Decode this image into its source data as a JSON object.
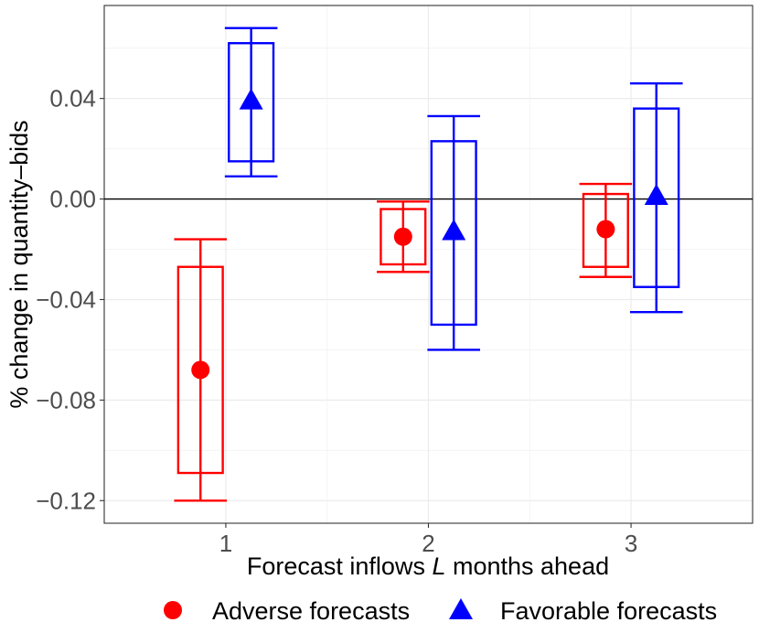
{
  "chart_data": {
    "type": "boxplot",
    "title": "",
    "xlabel_prefix": "Forecast inflows ",
    "xlabel_var": "L",
    "xlabel_suffix": " months ahead",
    "ylabel": "% change in quantity–bids",
    "categories": [
      "1",
      "2",
      "3"
    ],
    "yticks": [
      0.04,
      0.0,
      -0.04,
      -0.08,
      -0.12
    ],
    "ytick_labels": [
      "0.04",
      "0.00",
      "−0.04",
      "−0.08",
      "−0.12"
    ],
    "ylim": [
      -0.129,
      0.077
    ],
    "reference_line": 0,
    "legend_position": "bottom",
    "series": [
      {
        "name": "Adverse forecasts",
        "color": "#ff0000",
        "marker": "circle",
        "points": [
          {
            "x": "1",
            "whisker_high": -0.016,
            "box_high": -0.027,
            "mean": -0.068,
            "box_low": -0.109,
            "whisker_low": -0.12
          },
          {
            "x": "2",
            "whisker_high": -0.001,
            "box_high": -0.004,
            "mean": -0.015,
            "box_low": -0.026,
            "whisker_low": -0.029
          },
          {
            "x": "3",
            "whisker_high": 0.006,
            "box_high": 0.002,
            "mean": -0.012,
            "box_low": -0.027,
            "whisker_low": -0.031
          }
        ]
      },
      {
        "name": "Favorable forecasts",
        "color": "#0000ff",
        "marker": "triangle",
        "points": [
          {
            "x": "1",
            "whisker_high": 0.068,
            "box_high": 0.062,
            "mean": 0.039,
            "box_low": 0.015,
            "whisker_low": 0.009
          },
          {
            "x": "2",
            "whisker_high": 0.033,
            "box_high": 0.023,
            "mean": -0.013,
            "box_low": -0.05,
            "whisker_low": -0.06
          },
          {
            "x": "3",
            "whisker_high": 0.046,
            "box_high": 0.036,
            "mean": 0.001,
            "box_low": -0.035,
            "whisker_low": -0.045
          }
        ]
      }
    ]
  }
}
